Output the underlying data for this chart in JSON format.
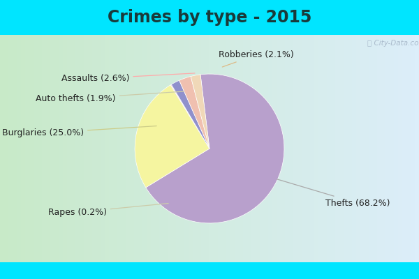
{
  "title": "Crimes by type - 2015",
  "labels": [
    "Thefts",
    "Burglaries",
    "Rapes",
    "Auto thefts",
    "Assaults",
    "Robberies"
  ],
  "values": [
    68.2,
    25.0,
    0.2,
    1.9,
    2.6,
    2.1
  ],
  "pie_colors": [
    "#b8a0cc",
    "#f5f5a0",
    "#f5c8d0",
    "#9090cc",
    "#f0c0b0",
    "#f0d8b8"
  ],
  "background_cyan": "#00e5ff",
  "background_grad_left": "#c8eac8",
  "background_grad_right": "#ddeeff",
  "title_fontsize": 17,
  "label_fontsize": 9,
  "figsize": [
    6.0,
    4.0
  ],
  "dpi": 100,
  "startangle": 97,
  "watermark": "ⓘ City-Data.com"
}
